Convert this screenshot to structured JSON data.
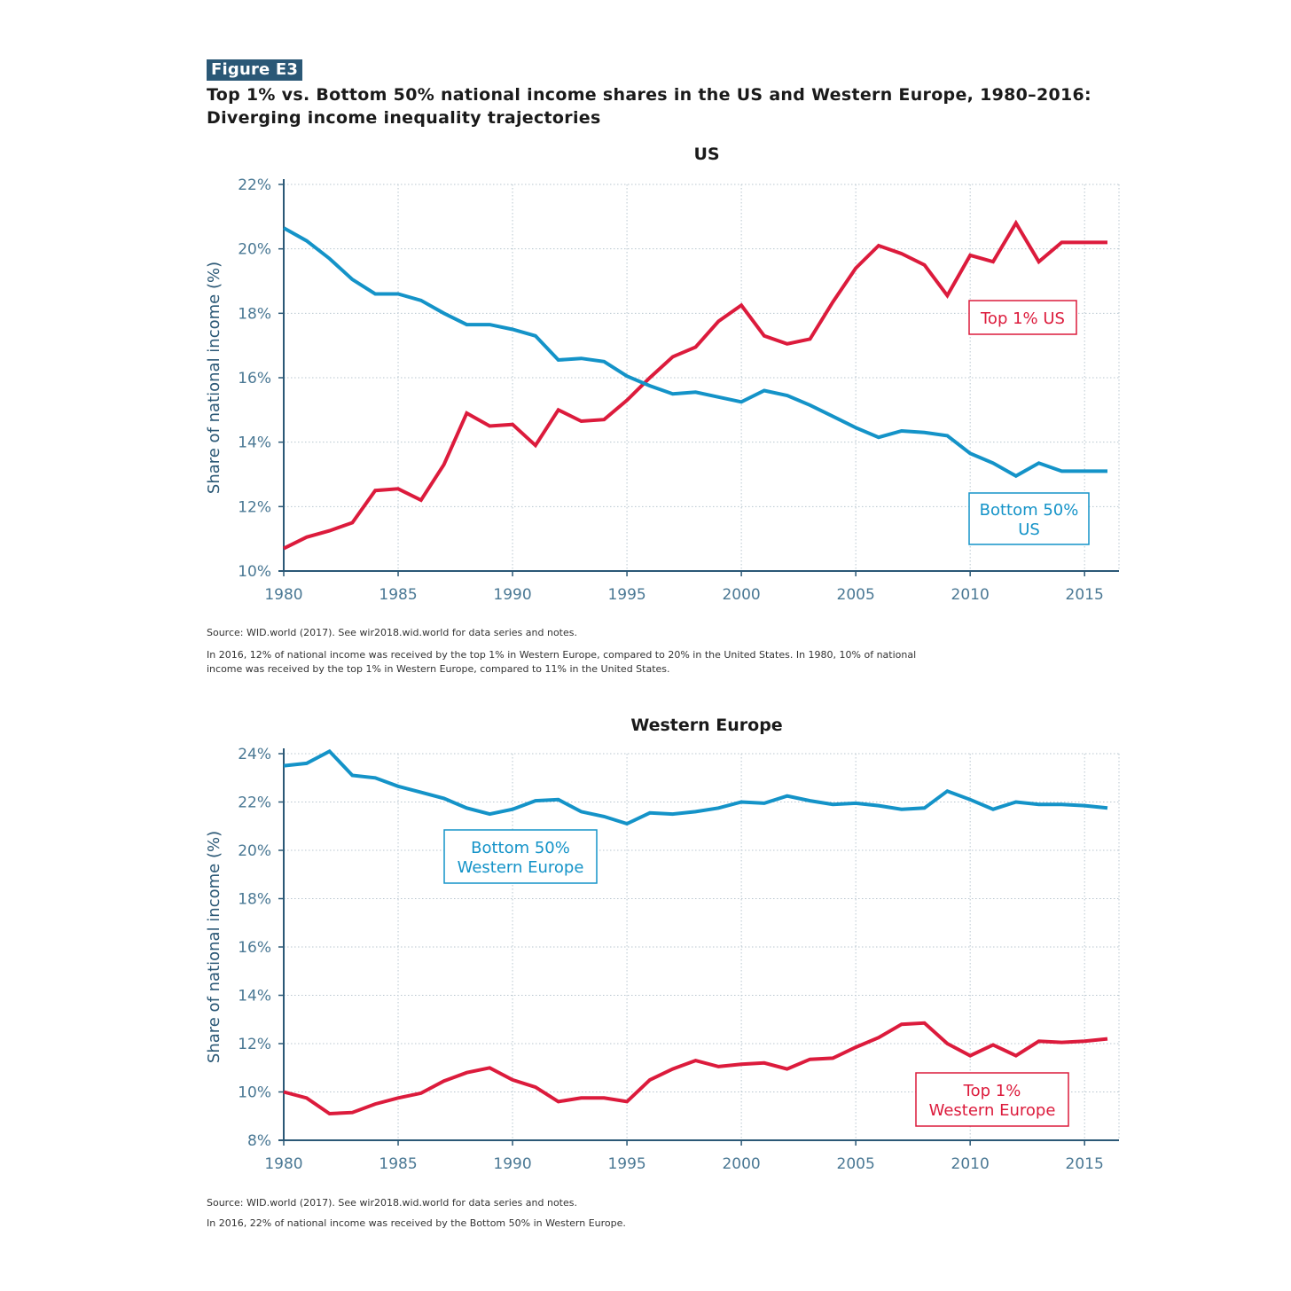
{
  "figure": {
    "label": "Figure E3",
    "title_lines": [
      "Top 1% vs. Bottom 50% national income shares in the US and Western Europe, 1980–2016:",
      "Diverging income inequality trajectories"
    ]
  },
  "colors": {
    "top": "#dc1b3c",
    "bottom": "#1493c8",
    "axis": "#2b5876",
    "tick_text": "#4a7894",
    "grid": "#b8c6cf"
  },
  "chart_data": [
    {
      "type": "line",
      "title": "US",
      "xlabel": "",
      "ylabel": "Share of national income (%)",
      "xlim": [
        1980,
        2016
      ],
      "ylim": [
        10,
        22
      ],
      "x_ticks": [
        1980,
        1985,
        1990,
        1995,
        2000,
        2005,
        2010,
        2015
      ],
      "y_ticks": [
        10,
        12,
        14,
        16,
        18,
        20,
        22
      ],
      "y_tick_labels": [
        "10%",
        "12%",
        "14%",
        "16%",
        "18%",
        "20%",
        "22%"
      ],
      "grid": true,
      "x": [
        1980,
        1981,
        1982,
        1983,
        1984,
        1985,
        1986,
        1987,
        1988,
        1989,
        1990,
        1991,
        1992,
        1993,
        1994,
        1995,
        1996,
        1997,
        1998,
        1999,
        2000,
        2001,
        2002,
        2003,
        2004,
        2005,
        2006,
        2007,
        2008,
        2009,
        2010,
        2011,
        2012,
        2013,
        2014,
        2015,
        2016
      ],
      "series": [
        {
          "name": "Top 1% US",
          "label_lines": [
            "Top 1% US"
          ],
          "color_key": "top",
          "values": [
            10.7,
            11.05,
            11.25,
            11.5,
            12.5,
            12.55,
            12.2,
            13.3,
            14.9,
            14.5,
            14.55,
            13.9,
            15.0,
            14.65,
            14.7,
            15.3,
            16.0,
            16.65,
            16.95,
            17.75,
            18.25,
            17.3,
            17.05,
            17.2,
            18.35,
            19.4,
            20.1,
            19.85,
            19.5,
            18.55,
            19.8,
            19.6,
            20.8,
            19.6,
            20.2,
            20.2,
            20.2
          ]
        },
        {
          "name": "Bottom 50% US",
          "label_lines": [
            "Bottom 50%",
            "US"
          ],
          "color_key": "bottom",
          "values": [
            20.65,
            20.25,
            19.7,
            19.05,
            18.6,
            18.6,
            18.4,
            18.0,
            17.65,
            17.65,
            17.5,
            17.3,
            16.55,
            16.6,
            16.5,
            16.05,
            15.75,
            15.5,
            15.55,
            15.4,
            15.25,
            15.6,
            15.45,
            15.15,
            14.8,
            14.45,
            14.15,
            14.35,
            14.3,
            14.2,
            13.65,
            13.35,
            12.95,
            13.35,
            13.1,
            13.1,
            13.1
          ]
        }
      ],
      "source": "Source:  WID.world (2017). See wir2018.wid.world for data series and notes.",
      "note_lines": [
        "In 2016, 12% of national income was received by the top 1% in Western Europe, compared to 20% in the United States. In 1980, 10% of national",
        "income was received by the top 1% in Western Europe, compared to 11% in the United States."
      ]
    },
    {
      "type": "line",
      "title": "Western Europe",
      "xlabel": "",
      "ylabel": "Share of national income (%)",
      "xlim": [
        1980,
        2016
      ],
      "ylim": [
        8,
        24
      ],
      "x_ticks": [
        1980,
        1985,
        1990,
        1995,
        2000,
        2005,
        2010,
        2015
      ],
      "y_ticks": [
        8,
        10,
        12,
        14,
        16,
        18,
        20,
        22,
        24
      ],
      "y_tick_labels": [
        "8%",
        "10%",
        "12%",
        "14%",
        "16%",
        "18%",
        "20%",
        "22%",
        "24%"
      ],
      "grid": true,
      "x": [
        1980,
        1981,
        1982,
        1983,
        1984,
        1985,
        1986,
        1987,
        1988,
        1989,
        1990,
        1991,
        1992,
        1993,
        1994,
        1995,
        1996,
        1997,
        1998,
        1999,
        2000,
        2001,
        2002,
        2003,
        2004,
        2005,
        2006,
        2007,
        2008,
        2009,
        2010,
        2011,
        2012,
        2013,
        2014,
        2015,
        2016
      ],
      "series": [
        {
          "name": "Bottom 50% Western Europe",
          "label_lines": [
            "Bottom 50%",
            "Western Europe"
          ],
          "color_key": "bottom",
          "values": [
            23.5,
            23.6,
            24.1,
            23.1,
            23.0,
            22.65,
            22.4,
            22.15,
            21.75,
            21.5,
            21.7,
            22.05,
            22.1,
            21.6,
            21.4,
            21.1,
            21.55,
            21.5,
            21.6,
            21.75,
            22.0,
            21.95,
            22.25,
            22.05,
            21.9,
            21.95,
            21.85,
            21.7,
            21.75,
            22.45,
            22.1,
            21.7,
            22.0,
            21.9,
            21.9,
            21.85,
            21.75
          ]
        },
        {
          "name": "Top 1% Western Europe",
          "label_lines": [
            "Top 1%",
            "Western Europe"
          ],
          "color_key": "top",
          "values": [
            10.0,
            9.75,
            9.1,
            9.15,
            9.5,
            9.75,
            9.95,
            10.45,
            10.8,
            11.0,
            10.5,
            10.2,
            9.6,
            9.75,
            9.75,
            9.6,
            10.5,
            10.95,
            11.3,
            11.05,
            11.15,
            11.2,
            10.95,
            11.35,
            11.4,
            11.85,
            12.25,
            12.8,
            12.85,
            12.0,
            11.5,
            11.95,
            11.5,
            12.1,
            12.05,
            12.1,
            12.2
          ]
        }
      ],
      "source": "Source:  WID.world (2017). See wir2018.wid.world for data series and notes.",
      "note_lines": [
        "In 2016, 22% of national income was received by the Bottom 50% in Western Europe."
      ]
    }
  ]
}
